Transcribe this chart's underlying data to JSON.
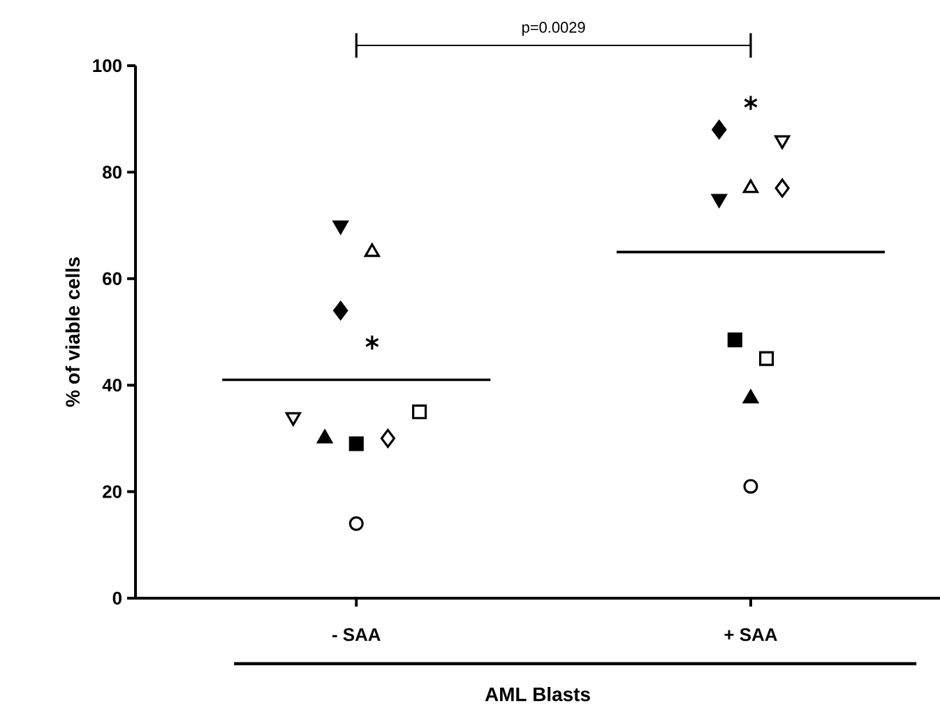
{
  "chart_data": {
    "type": "scatter",
    "ylabel": "% of viable cells",
    "xlabel": "AML Blasts",
    "annotations": [
      "p=0.0029"
    ],
    "categories": [
      "- SAA",
      "+ SAA"
    ],
    "ylim": [
      0,
      100
    ],
    "yticks": [
      0,
      20,
      40,
      60,
      80,
      100
    ],
    "series": [
      {
        "marker": "triangle_down",
        "color": "#000000",
        "x": [
          "- SAA",
          "+ SAA"
        ],
        "values": [
          70,
          75
        ]
      },
      {
        "marker": "triangle_open",
        "color": "#000000",
        "x": [
          "- SAA",
          "+ SAA"
        ],
        "values": [
          65,
          77
        ]
      },
      {
        "marker": "diamond",
        "color": "#000000",
        "x": [
          "- SAA",
          "+ SAA"
        ],
        "values": [
          54,
          88
        ]
      },
      {
        "marker": "cross",
        "color": "#000000",
        "x": [
          "- SAA",
          "+ SAA"
        ],
        "values": [
          48,
          93
        ]
      },
      {
        "marker": "triangle_down_open",
        "color": "#000000",
        "x": [
          "- SAA",
          "+ SAA"
        ],
        "values": [
          34,
          86
        ]
      },
      {
        "marker": "triangle",
        "color": "#000000",
        "x": [
          "- SAA",
          "+ SAA"
        ],
        "values": [
          30,
          37.5
        ]
      },
      {
        "marker": "square",
        "color": "#000000",
        "x": [
          "- SAA",
          "+ SAA"
        ],
        "values": [
          29,
          48.5
        ]
      },
      {
        "marker": "diamond_open",
        "color": "#000000",
        "x": [
          "- SAA",
          "+ SAA"
        ],
        "values": [
          30,
          77
        ]
      },
      {
        "marker": "square_open",
        "color": "#000000",
        "x": [
          "- SAA",
          "+ SAA"
        ],
        "values": [
          35,
          45
        ]
      },
      {
        "marker": "circle_open",
        "color": "#000000",
        "x": [
          "- SAA",
          "+ SAA"
        ],
        "values": [
          14,
          21
        ]
      }
    ],
    "ref_lines": [
      {
        "axis": "y",
        "value": 41,
        "color": "#000000"
      },
      {
        "axis": "y",
        "value": 65,
        "color": "#000000"
      }
    ]
  }
}
